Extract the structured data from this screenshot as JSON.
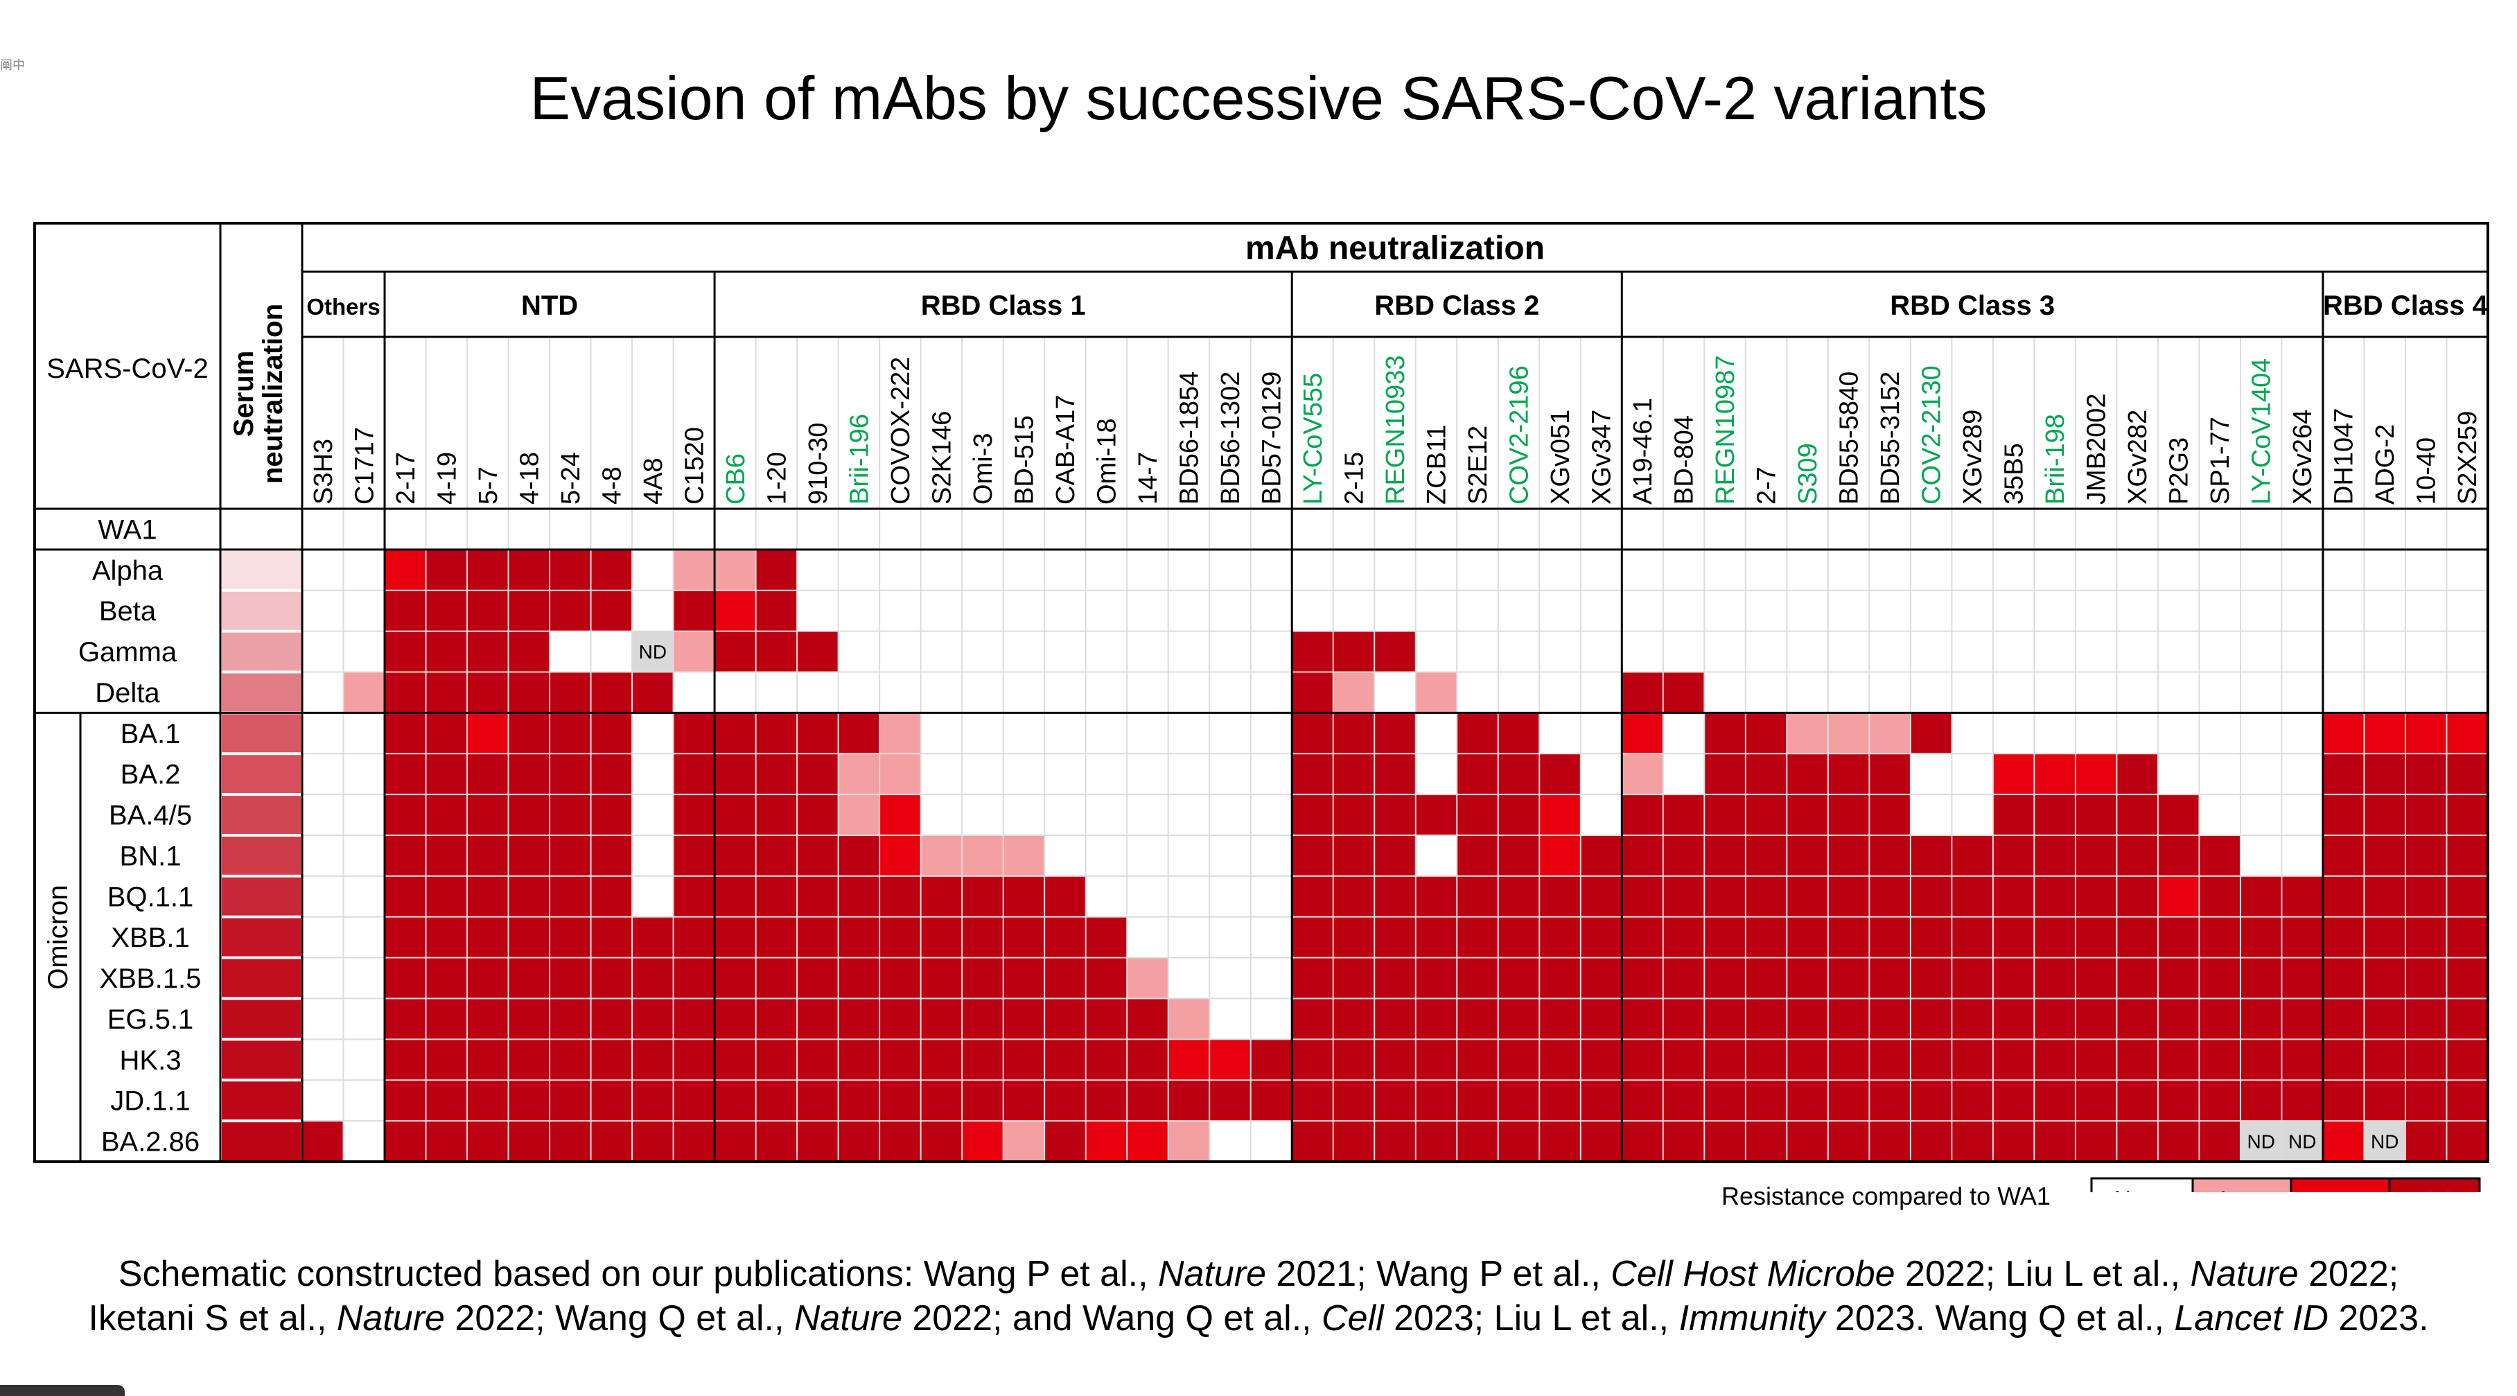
{
  "title": "Evasion of mAbs by successive SARS-CoV-2 variants",
  "corner_mark": "阐中",
  "chart_data": {
    "type": "heatmap",
    "title": "Evasion of mAbs by successive SARS-CoV-2 variants",
    "top_header": "mAb neutralization",
    "row_header": "SARS-CoV-2",
    "serum_header": "Serum neutralization",
    "omicron_label": "Omicron",
    "groups": [
      {
        "name": "Others",
        "count": 2
      },
      {
        "name": "NTD",
        "count": 8
      },
      {
        "name": "RBD Class 1",
        "count": 14
      },
      {
        "name": "RBD Class 2",
        "count": 8
      },
      {
        "name": "RBD Class 3",
        "count": 17
      },
      {
        "name": "RBD Class 4",
        "count": 4
      }
    ],
    "columns": [
      "S3H3",
      "C1717",
      "2-17",
      "4-19",
      "5-7",
      "4-18",
      "5-24",
      "4-8",
      "4A8",
      "C1520",
      "CB6",
      "1-20",
      "910-30",
      "Brii-196",
      "COVOX-222",
      "S2K146",
      "Omi-3",
      "BD-515",
      "CAB-A17",
      "Omi-18",
      "14-7",
      "BD56-1854",
      "BD56-1302",
      "BD57-0129",
      "LY-CoV555",
      "2-15",
      "REGN10933",
      "ZCB11",
      "S2E12",
      "COV2-2196",
      "XGv051",
      "XGv347",
      "A19-46.1",
      "BD-804",
      "REGN10987",
      "2-7",
      "S309",
      "BD55-5840",
      "BD55-3152",
      "COV2-2130",
      "XGv289",
      "35B5",
      "Brii-198",
      "JMB2002",
      "XGv282",
      "P2G3",
      "SP1-77",
      "LY-CoV1404",
      "XGv264",
      "DH1047",
      "ADG-2",
      "10-40",
      "S2X259"
    ],
    "green_columns": [
      "CB6",
      "Brii-196",
      "LY-CoV555",
      "REGN10933",
      "COV2-2196",
      "REGN10987",
      "S309",
      "COV2-2130",
      "Brii-198",
      "LY-CoV1404"
    ],
    "rows": [
      "WA1",
      "Alpha",
      "Beta",
      "Gamma",
      "Delta",
      "BA.1",
      "BA.2",
      "BA.4/5",
      "BN.1",
      "BQ.1.1",
      "XBB.1",
      "XBB.1.5",
      "EG.5.1",
      "HK.3",
      "JD.1.1",
      "BA.2.86"
    ],
    "serum_levels": [
      0,
      0.1,
      0.2,
      0.3,
      0.42,
      0.55,
      0.6,
      0.65,
      0.7,
      0.8,
      0.9,
      0.92,
      0.94,
      0.95,
      0.97,
      0.98
    ],
    "level_key": {
      "0": "None",
      "1": "Low",
      "2": "Medium",
      "3": "High",
      "N": "ND"
    },
    "matrix": [
      "00000000000000000000000000000000000000000000000000000",
      "00233333011300000000000000000000000000000000000000000",
      "00333333032300000000000000000000000000000000000000000",
      "00333300N1333000000000003330000000000000000000000000",
      "01333333300000000000000031010000330000000000000000000",
      "00332333033333100000000033303300203311130000000002222",
      "00333333033331100000000033303330103333300222300003333",
      "00333333033331200000000033333320333333300333330003333",
      "00333333033333211100000033303323333333333333333003333",
      "00333333033333333330000033333333333333333333323333333",
      "00333333333333333333000033333333333333333333333333333",
      "00333333333333333333100033333333333333333333333333333",
      "00333333333333333333310033333333333333333333333333333",
      "00333333333333333333322333333333333333333333333333333",
      "00333333333333333333333333333333333333333333333333333",
      "30333333333333332132210033333333333333333333333NN2N33"
    ]
  },
  "legend": {
    "label": "Resistance compared to WA1",
    "items": [
      {
        "label": "None",
        "color": "#ffffff"
      },
      {
        "label": "Low",
        "color": "#f4a0a3"
      },
      {
        "label": "Medium",
        "color": "#e8000f"
      },
      {
        "label": "High",
        "color": "#bc0012"
      }
    ]
  },
  "colors": {
    "none": "#ffffff",
    "low": "#f4a0a3",
    "medium": "#e8000f",
    "high": "#bc0012",
    "nd": "#d9d9d9",
    "green_label": "#00a651"
  },
  "citation": {
    "line1_parts": [
      {
        "t": "Schematic constructed based on our publications:  Wang P et al., ",
        "i": false
      },
      {
        "t": "Nature",
        "i": true
      },
      {
        "t": " 2021; Wang P et al., ",
        "i": false
      },
      {
        "t": "Cell Host Microbe",
        "i": true
      },
      {
        "t": " 2022; Liu L et al., ",
        "i": false
      },
      {
        "t": "Nature",
        "i": true
      },
      {
        "t": " 2022;",
        "i": false
      }
    ],
    "line2_parts": [
      {
        "t": "Iketani S et al., ",
        "i": false
      },
      {
        "t": "Nature",
        "i": true
      },
      {
        "t": " 2022; Wang Q et al., ",
        "i": false
      },
      {
        "t": "Nature",
        "i": true
      },
      {
        "t": " 2022; and Wang Q et al., ",
        "i": false
      },
      {
        "t": "Cell",
        "i": true
      },
      {
        "t": " 2023; Liu L et al., ",
        "i": false
      },
      {
        "t": "Immunity",
        "i": true
      },
      {
        "t": " 2023. Wang Q et al., ",
        "i": false
      },
      {
        "t": "Lancet ID",
        "i": true
      },
      {
        "t": " 2023.",
        "i": false
      }
    ]
  }
}
